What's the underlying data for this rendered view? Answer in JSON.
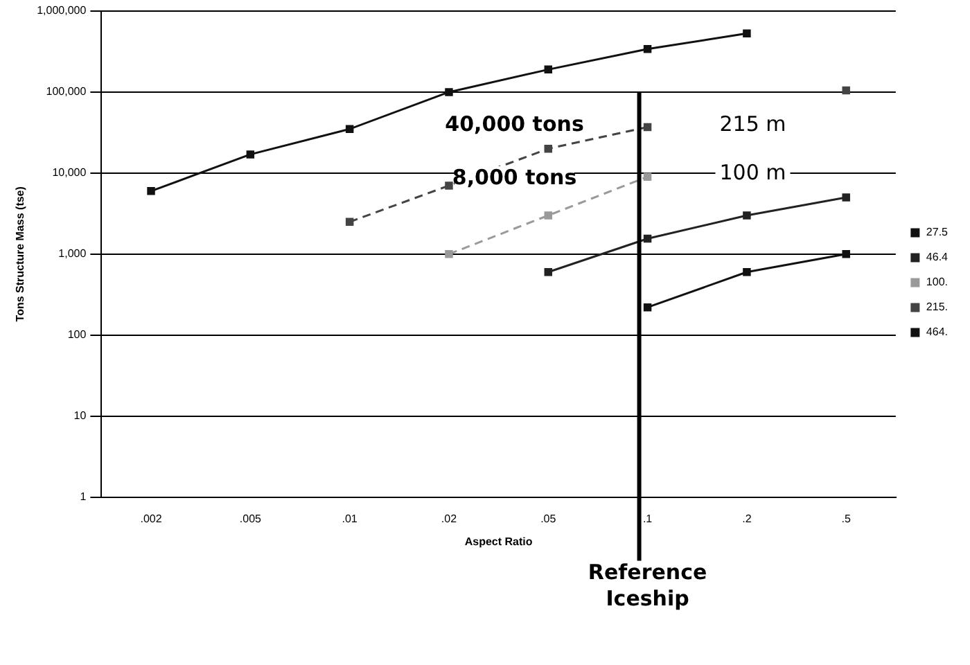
{
  "chart_data": {
    "type": "line",
    "xlabel": "Aspect Ratio",
    "ylabel": "Tons Structure Mass (tse)",
    "categories": [
      ".002",
      ".005",
      ".01",
      ".02",
      ".05",
      ".1",
      ".2",
      ".5"
    ],
    "series": [
      {
        "name": "27.5",
        "color": "#111111",
        "values": [
          null,
          null,
          null,
          null,
          null,
          220,
          600,
          1000
        ]
      },
      {
        "name": "46.4",
        "color": "#222222",
        "values": [
          null,
          null,
          null,
          null,
          600,
          1550,
          3000,
          5000
        ]
      },
      {
        "name": "100.",
        "color": "#9a9a9a",
        "line_style": "dashed",
        "values": [
          null,
          null,
          null,
          1000,
          3000,
          9000,
          null,
          null
        ]
      },
      {
        "name": "215.",
        "color": "#444444",
        "line_style": "dashed",
        "values": [
          null,
          null,
          2500,
          7000,
          20000,
          37000,
          null,
          105000
        ]
      },
      {
        "name": "464.",
        "color": "#111111",
        "values": [
          6000,
          17000,
          35000,
          100000,
          190000,
          340000,
          530000,
          null
        ]
      }
    ],
    "log": "y",
    "ylim": [
      1,
      1000000
    ],
    "yticks": [
      1,
      10,
      100,
      {
        "value": 1000,
        "label": "1,000"
      },
      {
        "value": 10000,
        "label": "10,000"
      },
      {
        "value": 100000,
        "label": "100,000"
      },
      {
        "value": 1000000,
        "label": "1,000,000"
      }
    ],
    "grid": "y",
    "legend": "right",
    "marker": "square",
    "ref_lines": [
      {
        "axis": "x",
        "value": ".1",
        "label": "Reference Iceship",
        "color": "#000000"
      }
    ],
    "annotations": [
      "40,000 tons",
      "8,000 tons",
      "215 m",
      "100 m"
    ]
  }
}
